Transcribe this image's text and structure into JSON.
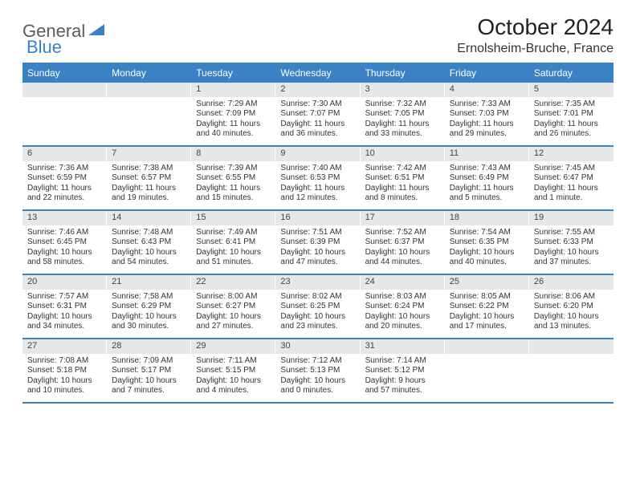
{
  "brand": {
    "part1": "General",
    "part2": "Blue"
  },
  "title": "October 2024",
  "location": "Ernolsheim-Bruche, France",
  "colors": {
    "accent": "#3b82c4",
    "dow_bg": "#3b82c4",
    "dow_text": "#ffffff",
    "daynum_bg": "#e6e7e8",
    "text": "#333333",
    "bg": "#ffffff"
  },
  "typography": {
    "title_fontsize": 28,
    "location_fontsize": 16,
    "dow_fontsize": 12,
    "daynum_fontsize": 11,
    "body_fontsize": 10
  },
  "dow": [
    "Sunday",
    "Monday",
    "Tuesday",
    "Wednesday",
    "Thursday",
    "Friday",
    "Saturday"
  ],
  "weeks": [
    [
      {
        "n": "",
        "sunrise": "",
        "sunset": "",
        "daylight": ""
      },
      {
        "n": "",
        "sunrise": "",
        "sunset": "",
        "daylight": ""
      },
      {
        "n": "1",
        "sunrise": "Sunrise: 7:29 AM",
        "sunset": "Sunset: 7:09 PM",
        "daylight": "Daylight: 11 hours and 40 minutes."
      },
      {
        "n": "2",
        "sunrise": "Sunrise: 7:30 AM",
        "sunset": "Sunset: 7:07 PM",
        "daylight": "Daylight: 11 hours and 36 minutes."
      },
      {
        "n": "3",
        "sunrise": "Sunrise: 7:32 AM",
        "sunset": "Sunset: 7:05 PM",
        "daylight": "Daylight: 11 hours and 33 minutes."
      },
      {
        "n": "4",
        "sunrise": "Sunrise: 7:33 AM",
        "sunset": "Sunset: 7:03 PM",
        "daylight": "Daylight: 11 hours and 29 minutes."
      },
      {
        "n": "5",
        "sunrise": "Sunrise: 7:35 AM",
        "sunset": "Sunset: 7:01 PM",
        "daylight": "Daylight: 11 hours and 26 minutes."
      }
    ],
    [
      {
        "n": "6",
        "sunrise": "Sunrise: 7:36 AM",
        "sunset": "Sunset: 6:59 PM",
        "daylight": "Daylight: 11 hours and 22 minutes."
      },
      {
        "n": "7",
        "sunrise": "Sunrise: 7:38 AM",
        "sunset": "Sunset: 6:57 PM",
        "daylight": "Daylight: 11 hours and 19 minutes."
      },
      {
        "n": "8",
        "sunrise": "Sunrise: 7:39 AM",
        "sunset": "Sunset: 6:55 PM",
        "daylight": "Daylight: 11 hours and 15 minutes."
      },
      {
        "n": "9",
        "sunrise": "Sunrise: 7:40 AM",
        "sunset": "Sunset: 6:53 PM",
        "daylight": "Daylight: 11 hours and 12 minutes."
      },
      {
        "n": "10",
        "sunrise": "Sunrise: 7:42 AM",
        "sunset": "Sunset: 6:51 PM",
        "daylight": "Daylight: 11 hours and 8 minutes."
      },
      {
        "n": "11",
        "sunrise": "Sunrise: 7:43 AM",
        "sunset": "Sunset: 6:49 PM",
        "daylight": "Daylight: 11 hours and 5 minutes."
      },
      {
        "n": "12",
        "sunrise": "Sunrise: 7:45 AM",
        "sunset": "Sunset: 6:47 PM",
        "daylight": "Daylight: 11 hours and 1 minute."
      }
    ],
    [
      {
        "n": "13",
        "sunrise": "Sunrise: 7:46 AM",
        "sunset": "Sunset: 6:45 PM",
        "daylight": "Daylight: 10 hours and 58 minutes."
      },
      {
        "n": "14",
        "sunrise": "Sunrise: 7:48 AM",
        "sunset": "Sunset: 6:43 PM",
        "daylight": "Daylight: 10 hours and 54 minutes."
      },
      {
        "n": "15",
        "sunrise": "Sunrise: 7:49 AM",
        "sunset": "Sunset: 6:41 PM",
        "daylight": "Daylight: 10 hours and 51 minutes."
      },
      {
        "n": "16",
        "sunrise": "Sunrise: 7:51 AM",
        "sunset": "Sunset: 6:39 PM",
        "daylight": "Daylight: 10 hours and 47 minutes."
      },
      {
        "n": "17",
        "sunrise": "Sunrise: 7:52 AM",
        "sunset": "Sunset: 6:37 PM",
        "daylight": "Daylight: 10 hours and 44 minutes."
      },
      {
        "n": "18",
        "sunrise": "Sunrise: 7:54 AM",
        "sunset": "Sunset: 6:35 PM",
        "daylight": "Daylight: 10 hours and 40 minutes."
      },
      {
        "n": "19",
        "sunrise": "Sunrise: 7:55 AM",
        "sunset": "Sunset: 6:33 PM",
        "daylight": "Daylight: 10 hours and 37 minutes."
      }
    ],
    [
      {
        "n": "20",
        "sunrise": "Sunrise: 7:57 AM",
        "sunset": "Sunset: 6:31 PM",
        "daylight": "Daylight: 10 hours and 34 minutes."
      },
      {
        "n": "21",
        "sunrise": "Sunrise: 7:58 AM",
        "sunset": "Sunset: 6:29 PM",
        "daylight": "Daylight: 10 hours and 30 minutes."
      },
      {
        "n": "22",
        "sunrise": "Sunrise: 8:00 AM",
        "sunset": "Sunset: 6:27 PM",
        "daylight": "Daylight: 10 hours and 27 minutes."
      },
      {
        "n": "23",
        "sunrise": "Sunrise: 8:02 AM",
        "sunset": "Sunset: 6:25 PM",
        "daylight": "Daylight: 10 hours and 23 minutes."
      },
      {
        "n": "24",
        "sunrise": "Sunrise: 8:03 AM",
        "sunset": "Sunset: 6:24 PM",
        "daylight": "Daylight: 10 hours and 20 minutes."
      },
      {
        "n": "25",
        "sunrise": "Sunrise: 8:05 AM",
        "sunset": "Sunset: 6:22 PM",
        "daylight": "Daylight: 10 hours and 17 minutes."
      },
      {
        "n": "26",
        "sunrise": "Sunrise: 8:06 AM",
        "sunset": "Sunset: 6:20 PM",
        "daylight": "Daylight: 10 hours and 13 minutes."
      }
    ],
    [
      {
        "n": "27",
        "sunrise": "Sunrise: 7:08 AM",
        "sunset": "Sunset: 5:18 PM",
        "daylight": "Daylight: 10 hours and 10 minutes."
      },
      {
        "n": "28",
        "sunrise": "Sunrise: 7:09 AM",
        "sunset": "Sunset: 5:17 PM",
        "daylight": "Daylight: 10 hours and 7 minutes."
      },
      {
        "n": "29",
        "sunrise": "Sunrise: 7:11 AM",
        "sunset": "Sunset: 5:15 PM",
        "daylight": "Daylight: 10 hours and 4 minutes."
      },
      {
        "n": "30",
        "sunrise": "Sunrise: 7:12 AM",
        "sunset": "Sunset: 5:13 PM",
        "daylight": "Daylight: 10 hours and 0 minutes."
      },
      {
        "n": "31",
        "sunrise": "Sunrise: 7:14 AM",
        "sunset": "Sunset: 5:12 PM",
        "daylight": "Daylight: 9 hours and 57 minutes."
      },
      {
        "n": "",
        "sunrise": "",
        "sunset": "",
        "daylight": ""
      },
      {
        "n": "",
        "sunrise": "",
        "sunset": "",
        "daylight": ""
      }
    ]
  ]
}
